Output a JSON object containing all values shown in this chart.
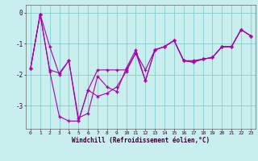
{
  "xlabel": "Windchill (Refroidissement éolien,°C)",
  "bg_color": "#c8eeee",
  "line_color": "#aa00aa",
  "grid_color": "#88cccc",
  "hours": [
    0,
    1,
    2,
    3,
    4,
    5,
    6,
    7,
    8,
    9,
    10,
    11,
    12,
    13,
    14,
    15,
    16,
    17,
    18,
    19,
    20,
    21,
    22,
    23
  ],
  "series1": [
    -1.8,
    -0.05,
    -1.1,
    -2.0,
    -1.55,
    -3.4,
    -3.25,
    -2.05,
    -2.4,
    -2.55,
    -1.8,
    -1.2,
    -2.2,
    -1.2,
    -1.1,
    -0.9,
    -1.55,
    -1.55,
    -1.5,
    -1.45,
    -1.1,
    -1.1,
    -0.55,
    -0.75
  ],
  "series2": [
    -1.8,
    -0.05,
    -1.9,
    -3.35,
    -3.5,
    -3.5,
    -2.5,
    -2.7,
    -2.6,
    -2.4,
    -1.9,
    -1.3,
    -2.2,
    -1.2,
    -1.1,
    -0.9,
    -1.55,
    -1.6,
    -1.5,
    -1.45,
    -1.1,
    -1.1,
    -0.55,
    -0.75
  ],
  "series3": [
    -1.8,
    -0.05,
    -1.85,
    -1.95,
    -1.55,
    -3.5,
    -2.5,
    -1.85,
    -1.85,
    -1.85,
    -1.85,
    -1.3,
    -1.85,
    -1.2,
    -1.1,
    -0.9,
    -1.55,
    -1.6,
    -1.5,
    -1.45,
    -1.1,
    -1.1,
    -0.55,
    -0.75
  ],
  "ylim": [
    -3.75,
    0.25
  ],
  "yticks": [
    0,
    -1,
    -2,
    -3
  ],
  "ytick_labels": [
    "0",
    "-1",
    "-2",
    "-3"
  ]
}
